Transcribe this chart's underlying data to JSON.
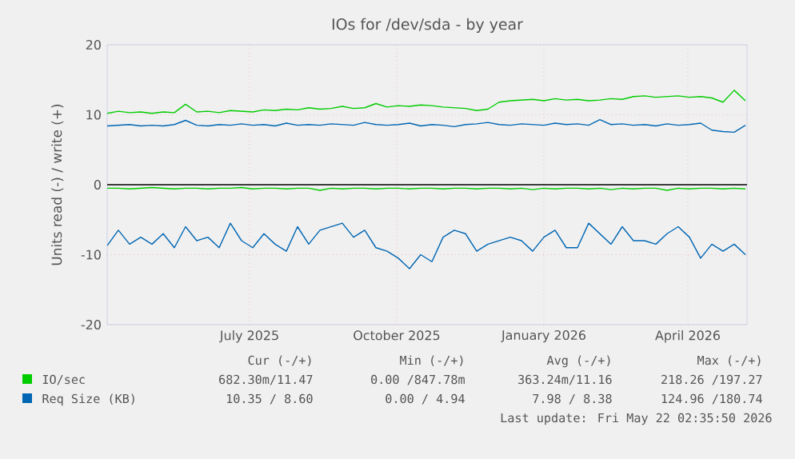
{
  "chart_data": {
    "type": "line",
    "title": "IOs for /dev/sda - by year",
    "ylabel": "Units read (-) / write (+)",
    "x": [
      "2025-04-18",
      "2025-04-25",
      "2025-05-02",
      "2025-05-09",
      "2025-05-16",
      "2025-05-23",
      "2025-05-30",
      "2025-06-06",
      "2025-06-13",
      "2025-06-20",
      "2025-06-27",
      "2025-07-04",
      "2025-07-11",
      "2025-07-18",
      "2025-07-25",
      "2025-08-01",
      "2025-08-08",
      "2025-08-15",
      "2025-08-22",
      "2025-08-29",
      "2025-09-05",
      "2025-09-12",
      "2025-09-19",
      "2025-09-26",
      "2025-10-03",
      "2025-10-10",
      "2025-10-17",
      "2025-10-24",
      "2025-10-31",
      "2025-11-07",
      "2025-11-14",
      "2025-11-21",
      "2025-11-28",
      "2025-12-05",
      "2025-12-12",
      "2025-12-19",
      "2025-12-26",
      "2026-01-02",
      "2026-01-09",
      "2026-01-16",
      "2026-01-23",
      "2026-01-30",
      "2026-02-06",
      "2026-02-13",
      "2026-02-20",
      "2026-02-27",
      "2026-03-06",
      "2026-03-13",
      "2026-03-20",
      "2026-03-27",
      "2026-04-03",
      "2026-04-10",
      "2026-04-17",
      "2026-04-24",
      "2026-05-01",
      "2026-05-08",
      "2026-05-15",
      "2026-05-22"
    ],
    "series": [
      {
        "name": "IO/sec",
        "color": "#00cc00",
        "values": [
          10.2,
          10.5,
          10.3,
          10.4,
          10.2,
          10.4,
          10.3,
          11.5,
          10.4,
          10.5,
          10.3,
          10.6,
          10.5,
          10.4,
          10.7,
          10.6,
          10.8,
          10.7,
          11.0,
          10.8,
          10.9,
          11.2,
          10.9,
          11.0,
          11.6,
          11.1,
          11.3,
          11.2,
          11.4,
          11.3,
          11.1,
          11.0,
          10.9,
          10.6,
          10.8,
          11.8,
          12.0,
          12.1,
          12.2,
          12.0,
          12.3,
          12.1,
          12.2,
          12.0,
          12.1,
          12.3,
          12.2,
          12.6,
          12.7,
          12.5,
          12.6,
          12.7,
          12.5,
          12.6,
          12.4,
          11.8,
          13.5,
          12.0
        ]
      },
      {
        "color": "#00cc00",
        "values": [
          -0.5,
          -0.5,
          -0.6,
          -0.5,
          -0.4,
          -0.5,
          -0.6,
          -0.5,
          -0.5,
          -0.6,
          -0.5,
          -0.5,
          -0.4,
          -0.6,
          -0.5,
          -0.5,
          -0.6,
          -0.5,
          -0.5,
          -0.8,
          -0.5,
          -0.6,
          -0.5,
          -0.5,
          -0.6,
          -0.5,
          -0.5,
          -0.6,
          -0.5,
          -0.5,
          -0.6,
          -0.5,
          -0.5,
          -0.6,
          -0.5,
          -0.5,
          -0.6,
          -0.5,
          -0.7,
          -0.5,
          -0.6,
          -0.5,
          -0.5,
          -0.6,
          -0.5,
          -0.7,
          -0.5,
          -0.6,
          -0.5,
          -0.5,
          -0.8,
          -0.5,
          -0.6,
          -0.5,
          -0.5,
          -0.6,
          -0.5,
          -0.6
        ]
      },
      {
        "name": "Req Size (KB)",
        "color": "#0066b3",
        "values": [
          8.4,
          8.5,
          8.6,
          8.4,
          8.5,
          8.4,
          8.6,
          9.2,
          8.5,
          8.4,
          8.6,
          8.5,
          8.7,
          8.5,
          8.6,
          8.4,
          8.8,
          8.5,
          8.6,
          8.5,
          8.7,
          8.6,
          8.5,
          8.9,
          8.6,
          8.5,
          8.6,
          8.8,
          8.4,
          8.6,
          8.5,
          8.3,
          8.6,
          8.7,
          8.9,
          8.6,
          8.5,
          8.7,
          8.6,
          8.5,
          8.8,
          8.6,
          8.7,
          8.5,
          9.3,
          8.6,
          8.7,
          8.5,
          8.6,
          8.4,
          8.7,
          8.5,
          8.6,
          8.8,
          7.8,
          7.6,
          7.5,
          8.5
        ]
      },
      {
        "color": "#0066b3",
        "values": [
          -8.7,
          -6.5,
          -8.5,
          -7.5,
          -8.5,
          -7,
          -9,
          -6,
          -8,
          -7.5,
          -9,
          -5.5,
          -8,
          -9,
          -7,
          -8.5,
          -9.5,
          -6,
          -8.5,
          -6.5,
          -6,
          -5.5,
          -7.5,
          -6.5,
          -9,
          -9.5,
          -10.5,
          -12,
          -10,
          -11,
          -7.5,
          -6.5,
          -7,
          -9.5,
          -8.5,
          -8,
          -7.5,
          -8,
          -9.5,
          -7.5,
          -6.5,
          -9,
          -9,
          -5.5,
          -7,
          -8.5,
          -6,
          -8,
          -8,
          -8.5,
          -7,
          -6,
          -7.5,
          -10.5,
          -8.5,
          -9.5,
          -8.5,
          -10
        ]
      }
    ],
    "xlim": [
      "2025-04-18",
      "2026-05-23"
    ],
    "xticks": [
      {
        "value": "2025-07-16",
        "label": "July 2025"
      },
      {
        "value": "2025-10-16",
        "label": "October 2025"
      },
      {
        "value": "2026-01-16",
        "label": "January 2026"
      },
      {
        "value": "2026-04-16",
        "label": "April 2026"
      }
    ],
    "ylim": [
      -20,
      20
    ],
    "yticks": [
      -20,
      -10,
      0,
      10,
      20
    ],
    "ref_lines": [
      {
        "axis": "y",
        "value": 0,
        "color": "#000000"
      }
    ],
    "grid": true,
    "legend": "bottom",
    "annotations": [
      "Cur (-/+)",
      "Min (-/+)",
      "Avg (-/+)",
      "Max (-/+)",
      "682.30m/11.47",
      "0.00 /847.78m",
      "363.24m/11.16",
      "218.26 /197.27",
      "10.35 / 8.60",
      "0.00 / 4.94",
      "7.98 / 8.38",
      "124.96 /180.74",
      "Last update: Fri May 22 02:35:50 2026"
    ]
  }
}
